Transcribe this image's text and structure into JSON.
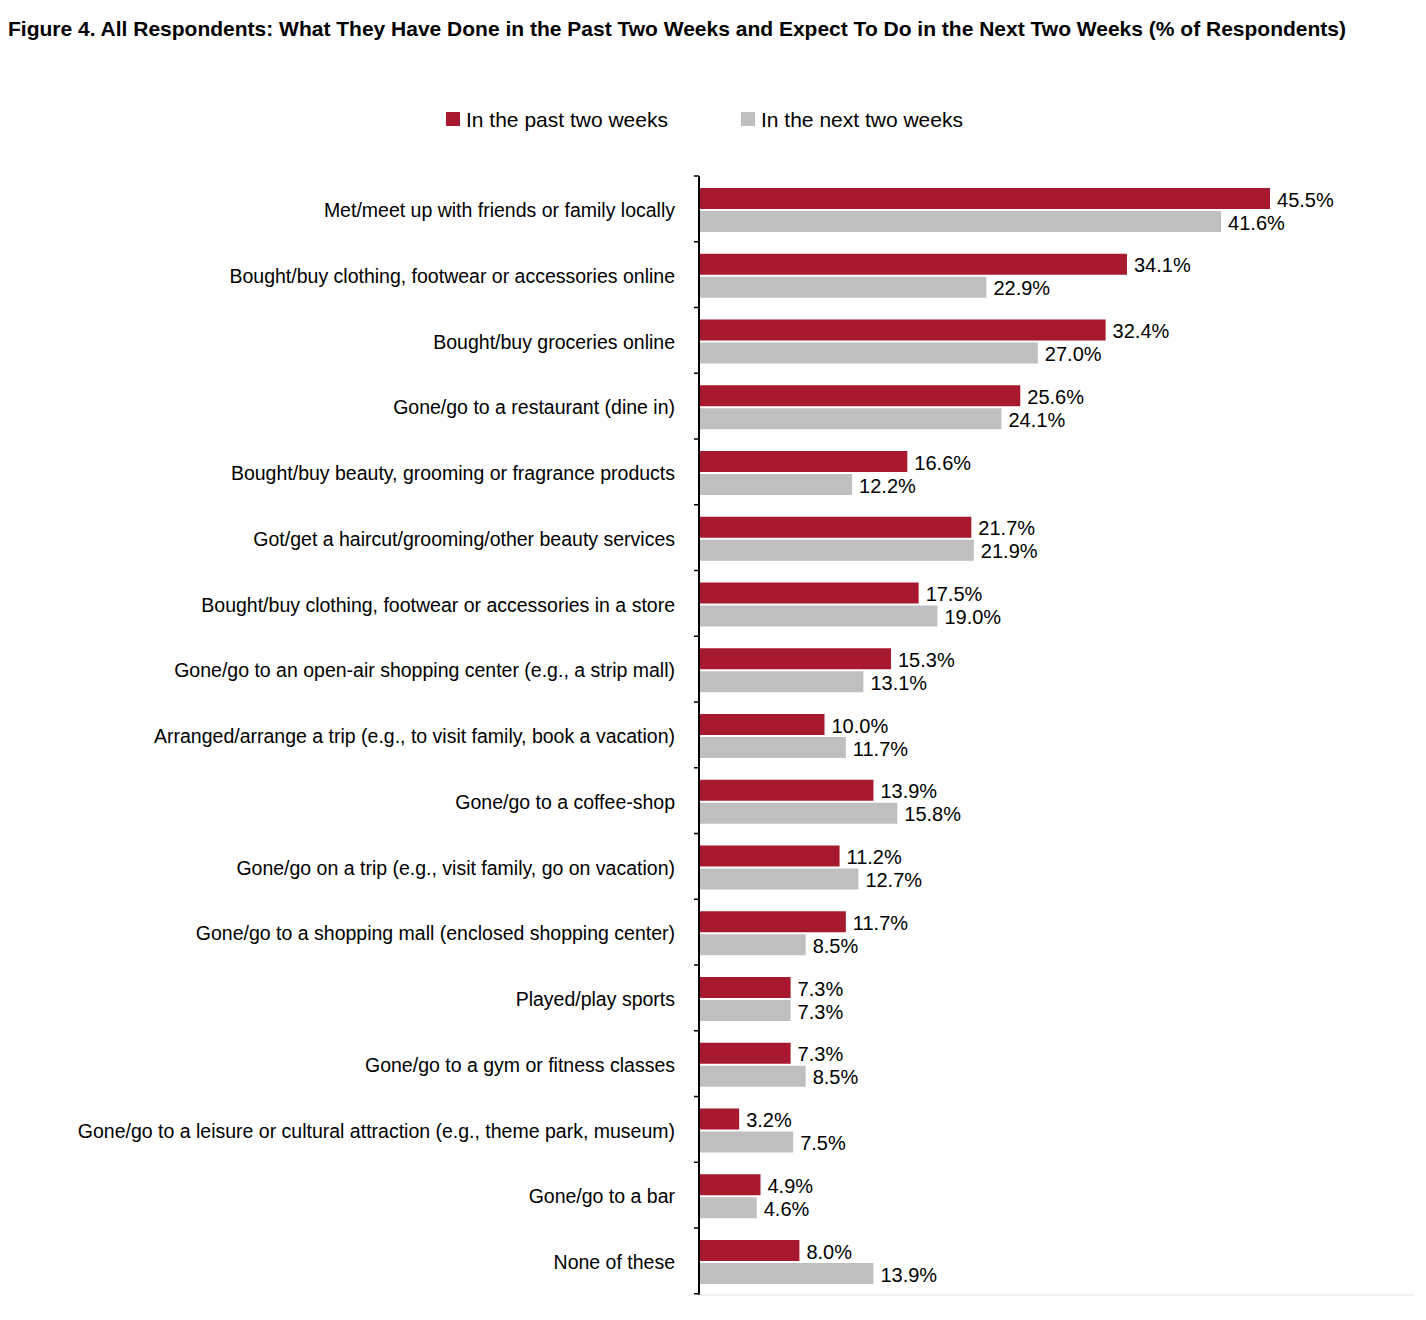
{
  "chart_data": {
    "type": "bar",
    "orientation": "horizontal",
    "title": "Figure 4. All Respondents: What They Have Done in the Past Two Weeks and Expect To Do in the Next Two Weeks (% of Respondents)",
    "categories": [
      "Met/meet up with friends or family locally",
      "Bought/buy clothing, footwear or accessories online",
      "Bought/buy groceries online",
      "Gone/go to a restaurant (dine in)",
      "Bought/buy beauty, grooming or fragrance products",
      "Got/get a haircut/grooming/other beauty services",
      "Bought/buy clothing, footwear or accessories in a store",
      "Gone/go to an open-air shopping center (e.g., a strip mall)",
      "Arranged/arrange a trip (e.g., to visit family, book a vacation)",
      "Gone/go to a coffee-shop",
      "Gone/go on a trip (e.g., visit family, go on vacation)",
      "Gone/go to a shopping mall (enclosed shopping center)",
      "Played/play sports",
      "Gone/go to a gym or fitness classes",
      "Gone/go to a leisure or cultural attraction (e.g., theme park, museum)",
      "Gone/go to a bar",
      "None of these"
    ],
    "series": [
      {
        "name": "In the past two weeks",
        "color": "#A6192E",
        "values": [
          45.5,
          34.1,
          32.4,
          25.6,
          16.6,
          21.7,
          17.5,
          15.3,
          10.0,
          13.9,
          11.2,
          11.7,
          7.3,
          7.3,
          3.2,
          4.9,
          8.0
        ],
        "value_labels": [
          "45.5%",
          "34.1%",
          "32.4%",
          "25.6%",
          "16.6%",
          "21.7%",
          "17.5%",
          "15.3%",
          "10.0%",
          "13.9%",
          "11.2%",
          "11.7%",
          "7.3%",
          "7.3%",
          "3.2%",
          "4.9%",
          "8.0%"
        ]
      },
      {
        "name": "In the next two weeks",
        "color": "#BFBFBF",
        "values": [
          41.6,
          22.9,
          27.0,
          24.1,
          12.2,
          21.9,
          19.0,
          13.1,
          11.7,
          15.8,
          12.7,
          8.5,
          7.3,
          8.5,
          7.5,
          4.6,
          13.9
        ],
        "value_labels": [
          "41.6%",
          "22.9%",
          "27.0%",
          "24.1%",
          "12.2%",
          "21.9%",
          "19.0%",
          "13.1%",
          "11.7%",
          "15.8%",
          "12.7%",
          "8.5%",
          "7.3%",
          "8.5%",
          "7.5%",
          "4.6%",
          "13.9%"
        ]
      }
    ],
    "xlim": [
      0,
      57
    ],
    "data_labels": true,
    "tick_labels": "y",
    "legend": "top",
    "grid": false
  }
}
